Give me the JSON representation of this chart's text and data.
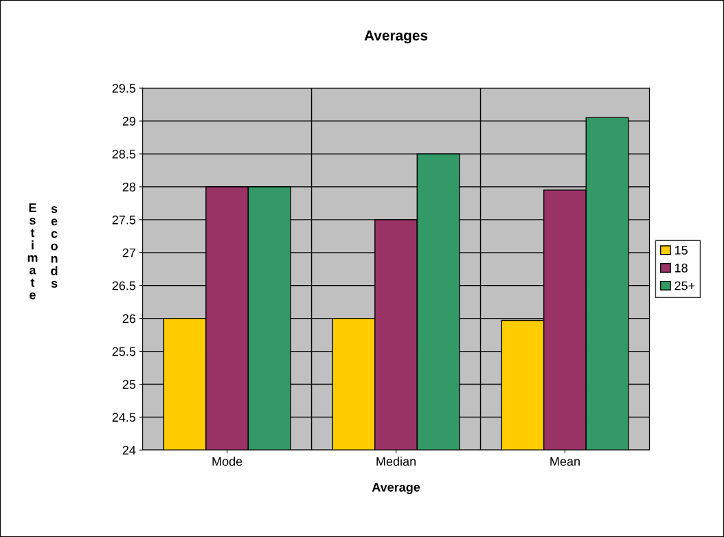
{
  "chart_data": {
    "type": "bar",
    "title": "Averages",
    "xlabel": "Average",
    "ylabel": "Estimate seconds",
    "categories": [
      "Mode",
      "Median",
      "Mean"
    ],
    "series": [
      {
        "name": "15",
        "color": "#ffcc00",
        "values": [
          26,
          26,
          25.97
        ]
      },
      {
        "name": "18",
        "color": "#993366",
        "values": [
          28,
          27.5,
          27.95
        ]
      },
      {
        "name": "25+",
        "color": "#339966",
        "values": [
          28,
          28.5,
          29.05
        ]
      }
    ],
    "ylim": [
      24,
      29.5
    ],
    "yticks": [
      24,
      24.5,
      25,
      25.5,
      26,
      26.5,
      27,
      27.5,
      28,
      28.5,
      29,
      29.5
    ],
    "grid": "y",
    "legend": "right"
  }
}
